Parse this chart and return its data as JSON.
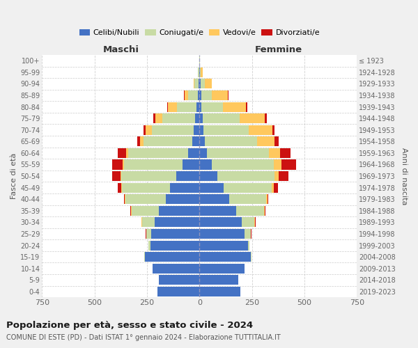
{
  "age_groups": [
    "0-4",
    "5-9",
    "10-14",
    "15-19",
    "20-24",
    "25-29",
    "30-34",
    "35-39",
    "40-44",
    "45-49",
    "50-54",
    "55-59",
    "60-64",
    "65-69",
    "70-74",
    "75-79",
    "80-84",
    "85-89",
    "90-94",
    "95-99",
    "100+"
  ],
  "birth_years": [
    "2019-2023",
    "2014-2018",
    "2009-2013",
    "2004-2008",
    "1999-2003",
    "1994-1998",
    "1989-1993",
    "1984-1988",
    "1979-1983",
    "1974-1978",
    "1969-1973",
    "1964-1968",
    "1959-1963",
    "1954-1958",
    "1949-1953",
    "1944-1948",
    "1939-1943",
    "1934-1938",
    "1929-1933",
    "1924-1928",
    "≤ 1923"
  ],
  "male_celibi": [
    200,
    195,
    225,
    260,
    235,
    230,
    215,
    195,
    162,
    140,
    110,
    80,
    55,
    35,
    28,
    20,
    15,
    8,
    5,
    2,
    0
  ],
  "male_coniugati": [
    0,
    0,
    0,
    4,
    8,
    22,
    58,
    128,
    192,
    228,
    262,
    280,
    285,
    230,
    200,
    158,
    92,
    45,
    18,
    5,
    1
  ],
  "male_vedovi": [
    0,
    0,
    0,
    0,
    0,
    2,
    2,
    2,
    2,
    5,
    5,
    5,
    10,
    18,
    28,
    32,
    42,
    18,
    5,
    2,
    0
  ],
  "male_divorziati": [
    0,
    0,
    0,
    0,
    0,
    2,
    2,
    5,
    5,
    15,
    40,
    50,
    40,
    15,
    12,
    10,
    5,
    2,
    0,
    0,
    0
  ],
  "female_nubili": [
    195,
    185,
    215,
    245,
    230,
    215,
    200,
    175,
    140,
    115,
    85,
    60,
    35,
    25,
    20,
    15,
    10,
    8,
    5,
    2,
    0
  ],
  "female_coniugate": [
    0,
    0,
    0,
    4,
    8,
    28,
    62,
    132,
    178,
    228,
    272,
    295,
    295,
    250,
    215,
    175,
    100,
    50,
    20,
    5,
    1
  ],
  "female_vedove": [
    0,
    0,
    0,
    0,
    1,
    2,
    2,
    3,
    5,
    10,
    20,
    35,
    55,
    82,
    112,
    122,
    112,
    78,
    32,
    10,
    1
  ],
  "female_divorziate": [
    0,
    0,
    0,
    0,
    0,
    2,
    3,
    5,
    5,
    20,
    45,
    70,
    50,
    20,
    10,
    10,
    5,
    2,
    0,
    0,
    0
  ],
  "color_celibi": "#4472C4",
  "color_coniugati": "#c8dba4",
  "color_vedovi": "#ffc85e",
  "color_divorziati": "#cc1111",
  "xlim": 750,
  "title": "Popolazione per età, sesso e stato civile - 2024",
  "subtitle": "COMUNE DI ESTE (PD) - Dati ISTAT 1° gennaio 2024 - Elaborazione TUTTITALIA.IT",
  "label_maschi": "Maschi",
  "label_femmine": "Femmine",
  "ylabel_left": "Fasce di età",
  "ylabel_right": "Anni di nascita",
  "legend_labels": [
    "Celibi/Nubili",
    "Coniugati/e",
    "Vedovi/e",
    "Divorziati/e"
  ],
  "bg_color": "#f0f0f0",
  "plot_bg": "#ffffff"
}
